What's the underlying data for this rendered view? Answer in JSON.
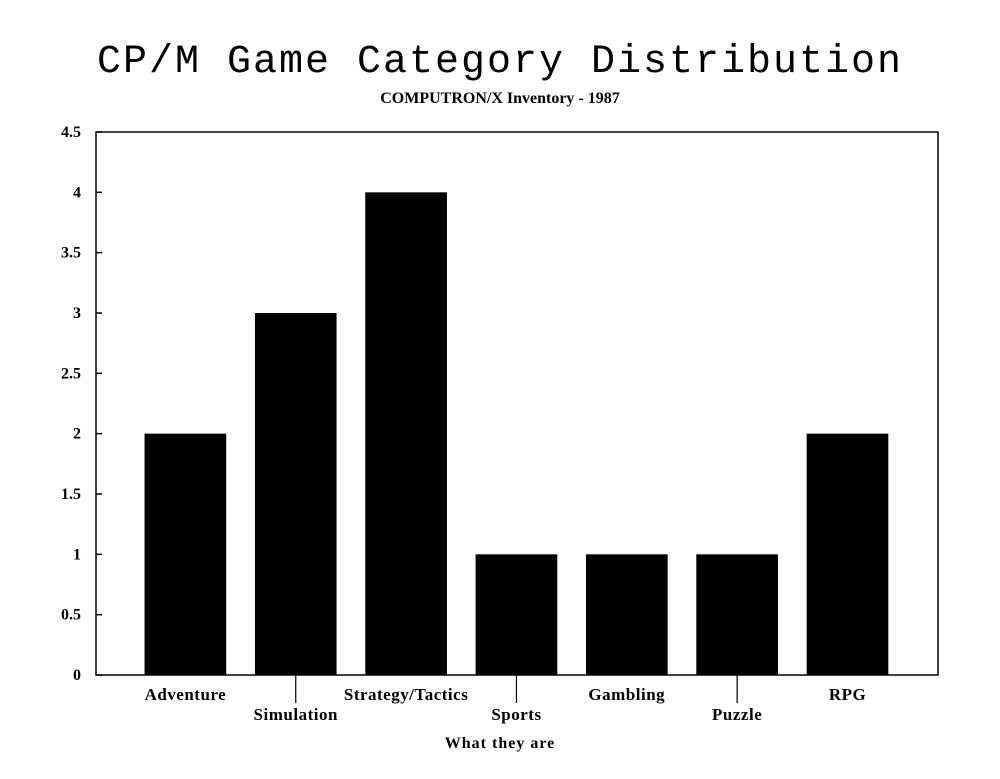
{
  "chart_data": {
    "type": "bar",
    "title": "CP/M Game Category Distribution",
    "subtitle": "COMPUTRON/X Inventory - 1987",
    "xlabel": "What they are",
    "ylabel": "",
    "categories": [
      "Adventure",
      "Simulation",
      "Strategy/Tactics",
      "Sports",
      "Gambling",
      "Puzzle",
      "RPG"
    ],
    "values": [
      2,
      3,
      4,
      1,
      1,
      1,
      2
    ],
    "ylim": [
      0,
      4.5
    ],
    "yticks": [
      "0",
      "0.5",
      "1",
      "1.5",
      "2",
      "2.5",
      "3",
      "3.5",
      "4",
      "4.5"
    ],
    "bar_color": "#000000",
    "grid": false,
    "legend": "none"
  }
}
